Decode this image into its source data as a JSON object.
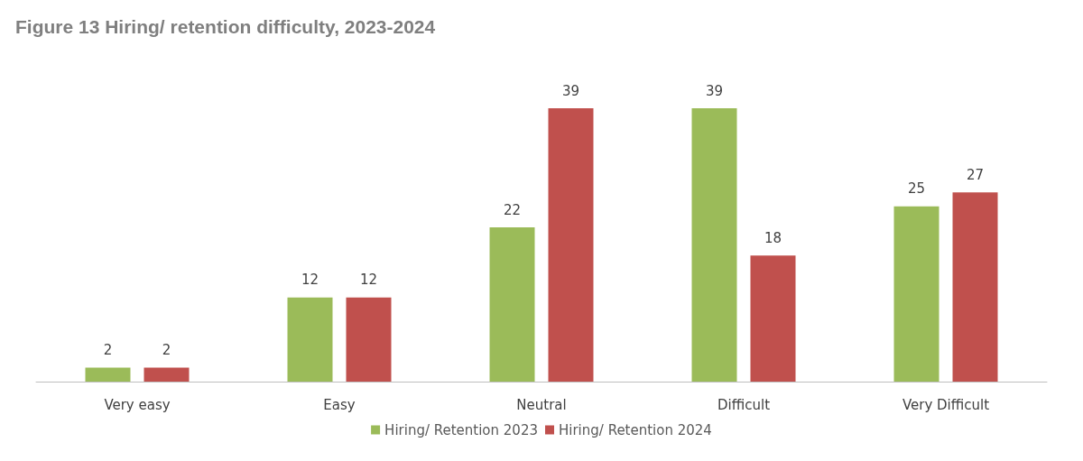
{
  "chart_data": {
    "type": "bar",
    "title": "Figure 13 Hiring/ retention difficulty, 2023-2024",
    "categories": [
      "Very easy",
      "Easy",
      "Neutral",
      "Difficult",
      "Very Difficult"
    ],
    "series": [
      {
        "name": "Hiring/ Retention 2023",
        "color": "#9bbb59",
        "values": [
          2,
          12,
          22,
          39,
          25
        ]
      },
      {
        "name": "Hiring/ Retention 2024",
        "color": "#c0504d",
        "values": [
          2,
          12,
          39,
          18,
          27
        ]
      }
    ],
    "data_labels": true,
    "legend": "bottom"
  }
}
